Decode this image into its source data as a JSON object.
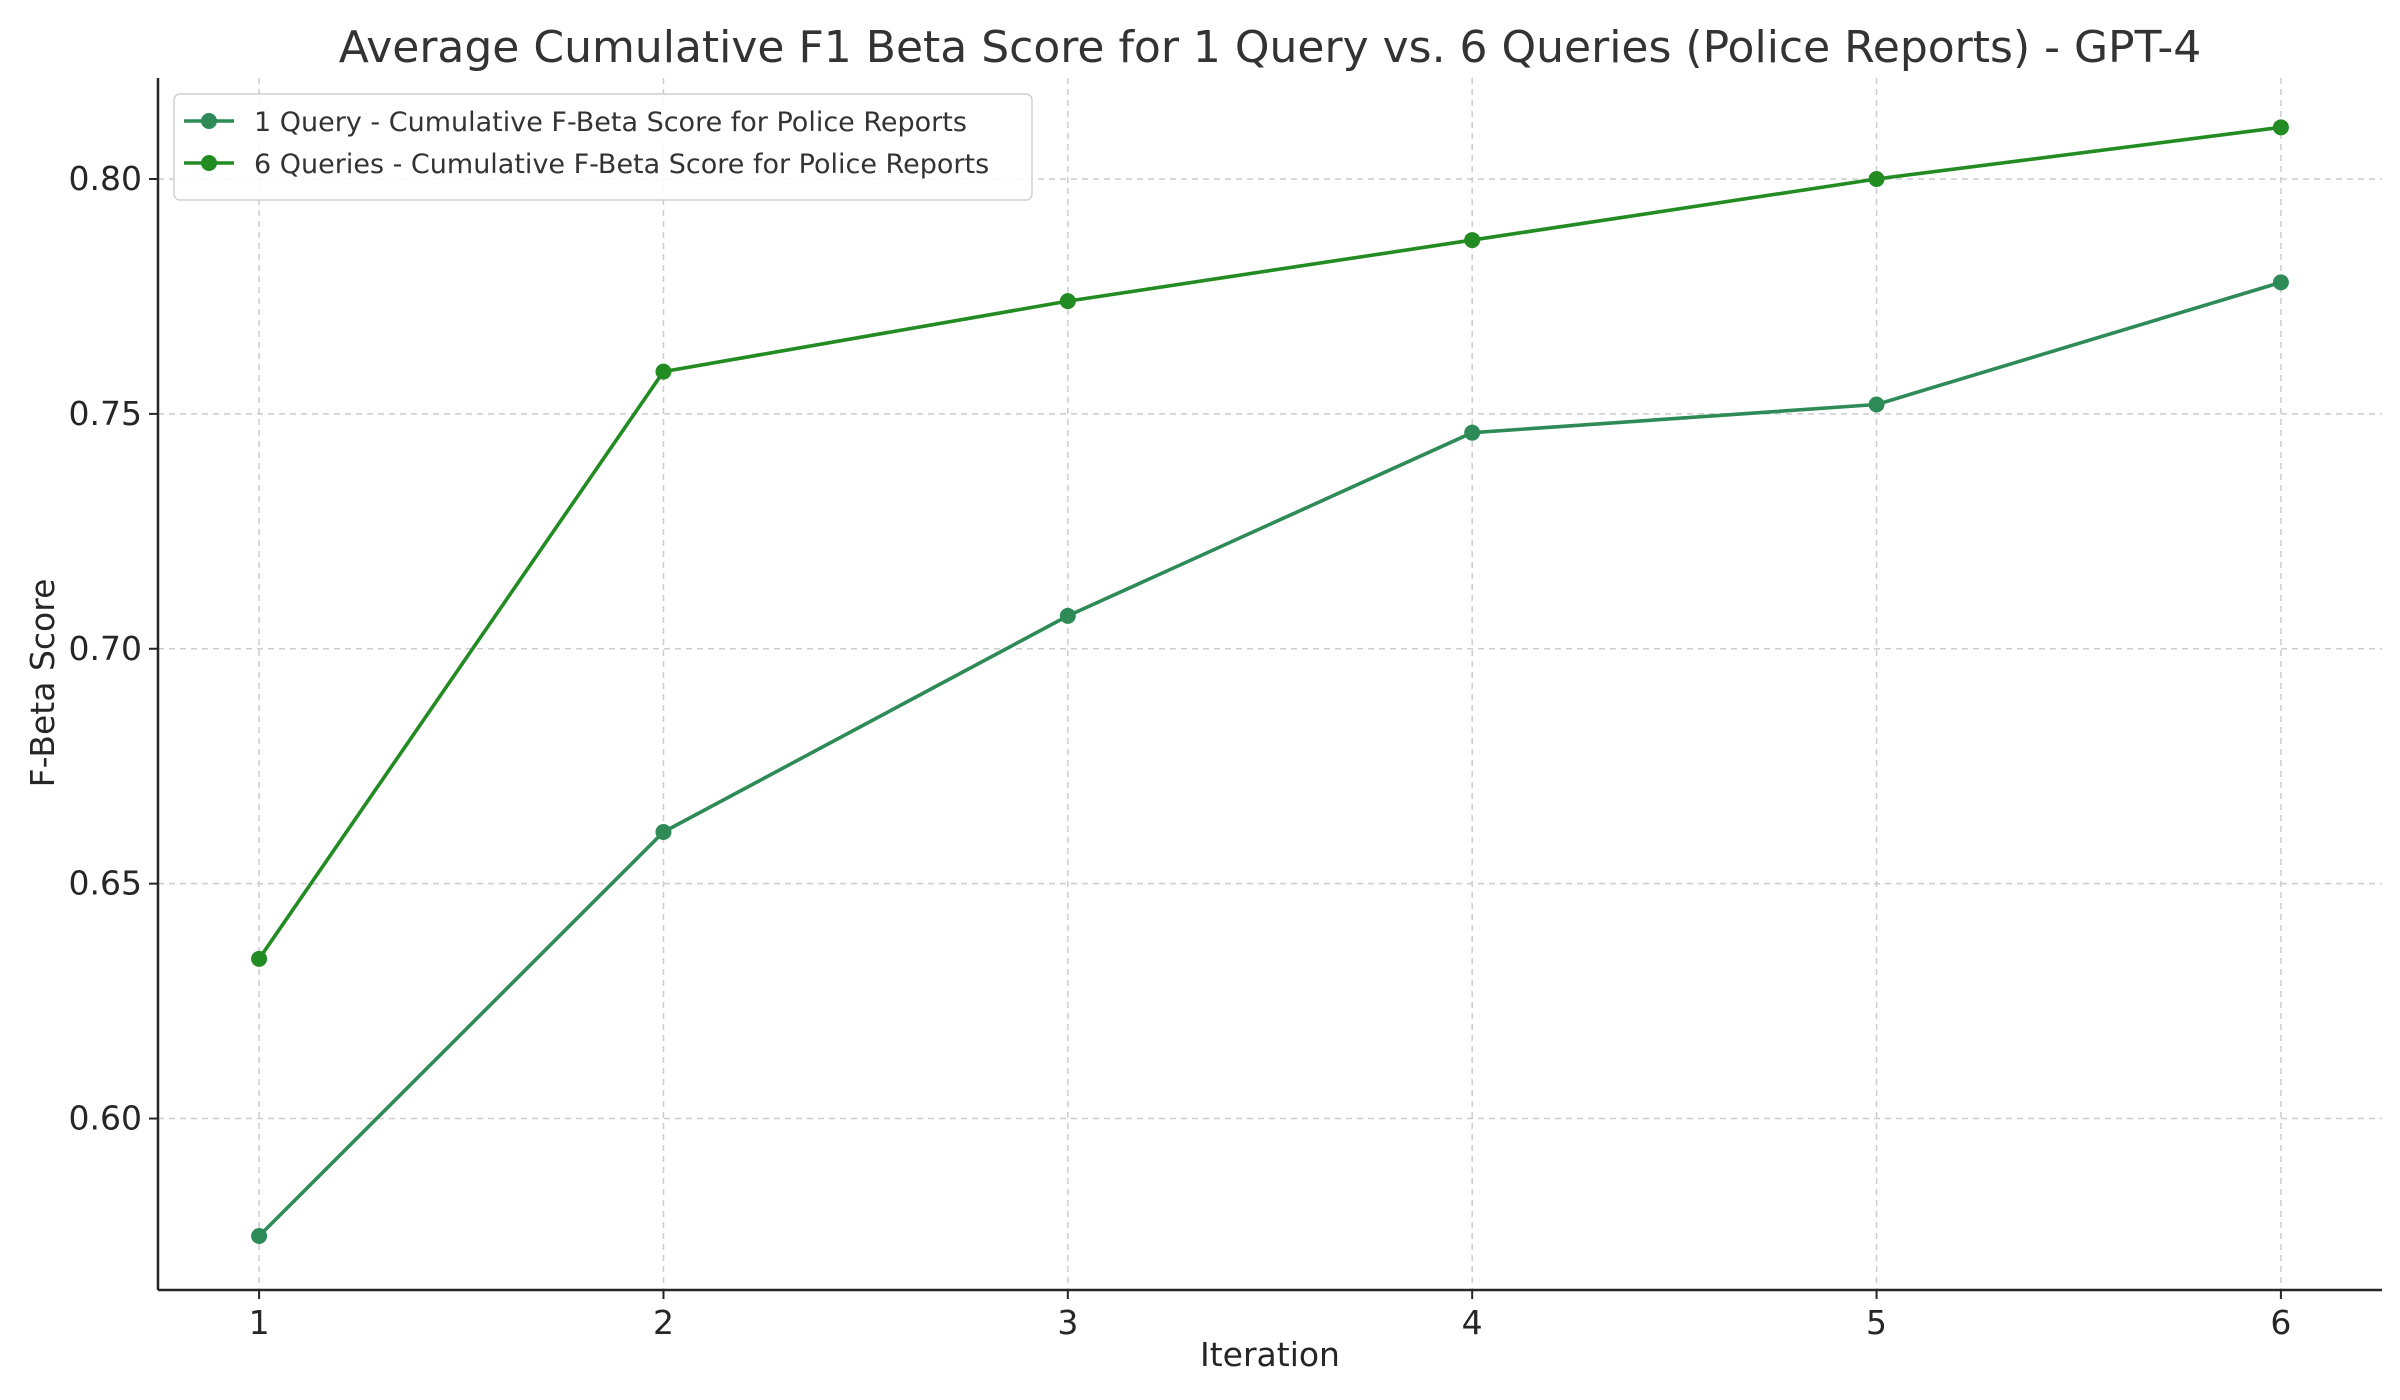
{
  "chart_data": {
    "type": "line",
    "title": "Average Cumulative F1 Beta Score for 1 Query vs. 6 Queries (Police Reports) - GPT-4",
    "xlabel": "Iteration",
    "ylabel": "F-Beta Score",
    "x": [
      1,
      2,
      3,
      4,
      5,
      6
    ],
    "xlim": [
      0.75,
      6.25
    ],
    "ylim": [
      0.5635,
      0.8215
    ],
    "xticks": [
      "1",
      "2",
      "3",
      "4",
      "5",
      "6"
    ],
    "yticks": [
      "0.60",
      "0.65",
      "0.70",
      "0.75",
      "0.80"
    ],
    "ytick_values": [
      0.6,
      0.65,
      0.7,
      0.75,
      0.8
    ],
    "grid": true,
    "legend_position": "top-left",
    "series": [
      {
        "name": "1 Query - Cumulative F-Beta Score for Police Reports",
        "values": [
          0.575,
          0.661,
          0.707,
          0.746,
          0.752,
          0.778
        ],
        "color": "#2e8b57",
        "marker": "circle"
      },
      {
        "name": "6 Queries - Cumulative F-Beta Score for Police Reports",
        "values": [
          0.634,
          0.759,
          0.774,
          0.787,
          0.8,
          0.811
        ],
        "color": "#228b22",
        "marker": "circle"
      }
    ]
  }
}
